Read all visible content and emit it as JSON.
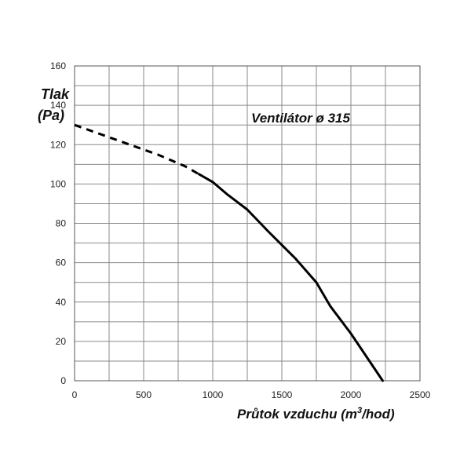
{
  "chart_data": {
    "type": "line",
    "title": "Ventilátor ø 315",
    "ylabel_line1": "Tlak",
    "ylabel_line2": "(Pa)",
    "xlabel_main": "Průtok vzduchu (m",
    "xlabel_sup": "3",
    "xlabel_end": "/hod)",
    "xlim": [
      0,
      2500
    ],
    "ylim": [
      0,
      160
    ],
    "x_ticks": [
      0,
      500,
      1000,
      1500,
      2000,
      2500
    ],
    "x_tick_labels": [
      "0",
      "500",
      "1000",
      "1500",
      "2000",
      "2500"
    ],
    "y_ticks": [
      0,
      20,
      40,
      60,
      80,
      100,
      120,
      140,
      160
    ],
    "y_tick_labels": [
      "0",
      "20",
      "40",
      "60",
      "80",
      "100",
      "120",
      "140",
      "160"
    ],
    "grid": true,
    "series": [
      {
        "style": "dashed",
        "x": [
          0,
          200,
          400,
          600,
          800,
          900
        ],
        "y": [
          130,
          125,
          120,
          115,
          109,
          105
        ]
      },
      {
        "style": "solid",
        "x": [
          900,
          1000,
          1100,
          1250,
          1400,
          1600,
          1750,
          1850,
          2000,
          2230
        ],
        "y": [
          105,
          101,
          95,
          87,
          76,
          62,
          50,
          38,
          24,
          0
        ]
      }
    ]
  }
}
